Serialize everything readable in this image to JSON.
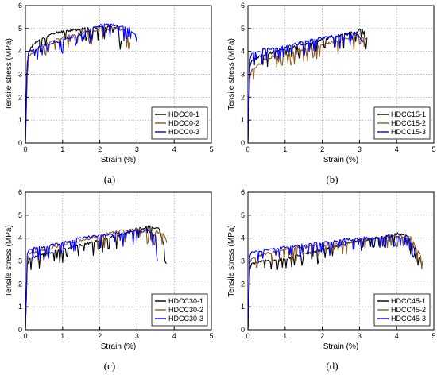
{
  "figure": {
    "panel_labels": [
      "(a)",
      "(b)",
      "(c)",
      "(d)"
    ]
  },
  "chart_data": [
    {
      "type": "line",
      "panel": "(a)",
      "xlabel": "Strain (%)",
      "ylabel": "Tensile stress (MPa)",
      "xlim": [
        0,
        5
      ],
      "ylim": [
        0,
        6
      ],
      "xticks": [
        0,
        1,
        2,
        3,
        4,
        5
      ],
      "yticks": [
        0,
        1,
        2,
        3,
        4,
        5,
        6
      ],
      "grid": true,
      "legend_position": "bottom-right",
      "series": [
        {
          "name": "HDCC0-1",
          "color": "#000000",
          "x": [
            0,
            0.04,
            0.08,
            0.2,
            0.5,
            0.8,
            1.1,
            1.4,
            1.7,
            2.0,
            2.3,
            2.5,
            2.6
          ],
          "y": [
            0,
            3.2,
            3.9,
            4.3,
            4.6,
            4.8,
            4.9,
            4.95,
            5.0,
            5.05,
            5.1,
            5.05,
            4.3
          ]
        },
        {
          "name": "HDCC0-2",
          "color": "#8B5A1E",
          "x": [
            0,
            0.05,
            0.1,
            0.4,
            0.8,
            1.2,
            1.6,
            2.0,
            2.4,
            2.7,
            2.8
          ],
          "y": [
            0,
            3.0,
            3.8,
            4.2,
            4.5,
            4.7,
            4.85,
            4.95,
            5.0,
            4.9,
            4.4
          ]
        },
        {
          "name": "HDCC0-3",
          "color": "#0000FF",
          "x": [
            0,
            0.05,
            0.1,
            0.4,
            0.8,
            1.2,
            1.6,
            1.9,
            2.2,
            2.5,
            2.8,
            2.95,
            3.0
          ],
          "y": [
            0,
            3.5,
            4.0,
            4.2,
            4.4,
            4.6,
            4.8,
            5.1,
            5.2,
            5.1,
            5.0,
            4.7,
            4.4
          ]
        }
      ]
    },
    {
      "type": "line",
      "panel": "(b)",
      "xlabel": "Strain (%)",
      "ylabel": "Tensile stress (MPa)",
      "xlim": [
        0,
        5
      ],
      "ylim": [
        0,
        6
      ],
      "xticks": [
        0,
        1,
        2,
        3,
        4,
        5
      ],
      "yticks": [
        0,
        1,
        2,
        3,
        4,
        5,
        6
      ],
      "grid": true,
      "legend_position": "bottom-right",
      "series": [
        {
          "name": "HDCC15-1",
          "color": "#000000",
          "x": [
            0,
            0.05,
            0.1,
            0.5,
            1.0,
            1.5,
            2.0,
            2.5,
            3.0,
            3.1,
            3.2
          ],
          "y": [
            0,
            3.3,
            3.6,
            3.9,
            4.1,
            4.3,
            4.5,
            4.7,
            4.9,
            5.0,
            4.6
          ]
        },
        {
          "name": "HDCC15-2",
          "color": "#8B5A1E",
          "x": [
            0,
            0.05,
            0.1,
            0.5,
            1.0,
            1.5,
            2.0,
            2.5,
            3.0,
            3.2
          ],
          "y": [
            0,
            2.8,
            3.2,
            3.7,
            3.9,
            4.1,
            4.3,
            4.5,
            4.7,
            4.5
          ]
        },
        {
          "name": "HDCC15-3",
          "color": "#0000FF",
          "x": [
            0,
            0.05,
            0.1,
            0.5,
            1.0,
            1.5,
            2.0,
            2.5,
            2.9,
            3.1
          ],
          "y": [
            0,
            3.6,
            3.9,
            4.1,
            4.2,
            4.4,
            4.6,
            4.7,
            4.8,
            4.4
          ]
        }
      ]
    },
    {
      "type": "line",
      "panel": "(c)",
      "xlabel": "Strain (%)",
      "ylabel": "Tensile stress (MPa)",
      "xlim": [
        0,
        5
      ],
      "ylim": [
        0,
        6
      ],
      "xticks": [
        0,
        1,
        2,
        3,
        4,
        5
      ],
      "yticks": [
        0,
        1,
        2,
        3,
        4,
        5,
        6
      ],
      "grid": true,
      "legend_position": "bottom-right",
      "series": [
        {
          "name": "HDCC30-1",
          "color": "#000000",
          "x": [
            0,
            0.05,
            0.1,
            0.5,
            1.0,
            1.5,
            2.0,
            2.5,
            3.0,
            3.3,
            3.6,
            3.75,
            3.8
          ],
          "y": [
            0,
            2.8,
            3.1,
            3.3,
            3.5,
            3.7,
            3.9,
            4.1,
            4.4,
            4.5,
            4.4,
            3.5,
            2.9
          ]
        },
        {
          "name": "HDCC30-2",
          "color": "#8B5A1E",
          "x": [
            0,
            0.05,
            0.1,
            0.5,
            1.0,
            1.5,
            2.0,
            2.5,
            3.0,
            3.4,
            3.7,
            3.8
          ],
          "y": [
            0,
            3.0,
            3.3,
            3.5,
            3.7,
            3.9,
            4.1,
            4.3,
            4.4,
            4.3,
            4.2,
            3.8
          ]
        },
        {
          "name": "HDCC30-3",
          "color": "#0000FF",
          "x": [
            0,
            0.05,
            0.1,
            0.5,
            1.0,
            1.5,
            2.0,
            2.5,
            3.0,
            3.3,
            3.5,
            3.55
          ],
          "y": [
            0,
            3.3,
            3.5,
            3.6,
            3.8,
            4.0,
            4.1,
            4.2,
            4.3,
            4.3,
            4.1,
            3.0
          ]
        }
      ]
    },
    {
      "type": "line",
      "panel": "(d)",
      "xlabel": "Strain (%)",
      "ylabel": "Tensile stress (MPa)",
      "xlim": [
        0,
        5
      ],
      "ylim": [
        0,
        6
      ],
      "xticks": [
        0,
        1,
        2,
        3,
        4,
        5
      ],
      "yticks": [
        0,
        1,
        2,
        3,
        4,
        5,
        6
      ],
      "grid": true,
      "legend_position": "bottom-right",
      "series": [
        {
          "name": "HDCC45-1",
          "color": "#000000",
          "x": [
            0,
            0.05,
            0.1,
            0.5,
            1.0,
            1.5,
            2.0,
            2.5,
            3.0,
            3.5,
            4.0,
            4.3,
            4.5,
            4.7
          ],
          "y": [
            0,
            2.6,
            2.9,
            3.0,
            3.1,
            3.3,
            3.5,
            3.7,
            3.9,
            4.0,
            4.2,
            4.1,
            3.5,
            2.8
          ]
        },
        {
          "name": "HDCC45-2",
          "color": "#8B5A1E",
          "x": [
            0,
            0.05,
            0.1,
            0.5,
            1.0,
            1.5,
            2.0,
            2.5,
            3.0,
            3.5,
            4.0,
            4.4,
            4.7
          ],
          "y": [
            0,
            2.9,
            3.1,
            3.3,
            3.5,
            3.6,
            3.7,
            3.8,
            3.9,
            4.0,
            4.1,
            4.0,
            3.0
          ]
        },
        {
          "name": "HDCC45-3",
          "color": "#0000FF",
          "x": [
            0,
            0.05,
            0.1,
            0.5,
            1.0,
            1.5,
            2.0,
            2.5,
            3.0,
            3.5,
            4.0,
            4.3,
            4.5
          ],
          "y": [
            0,
            3.2,
            3.4,
            3.5,
            3.6,
            3.7,
            3.8,
            3.9,
            4.0,
            4.0,
            4.1,
            4.0,
            3.6
          ]
        }
      ]
    }
  ]
}
